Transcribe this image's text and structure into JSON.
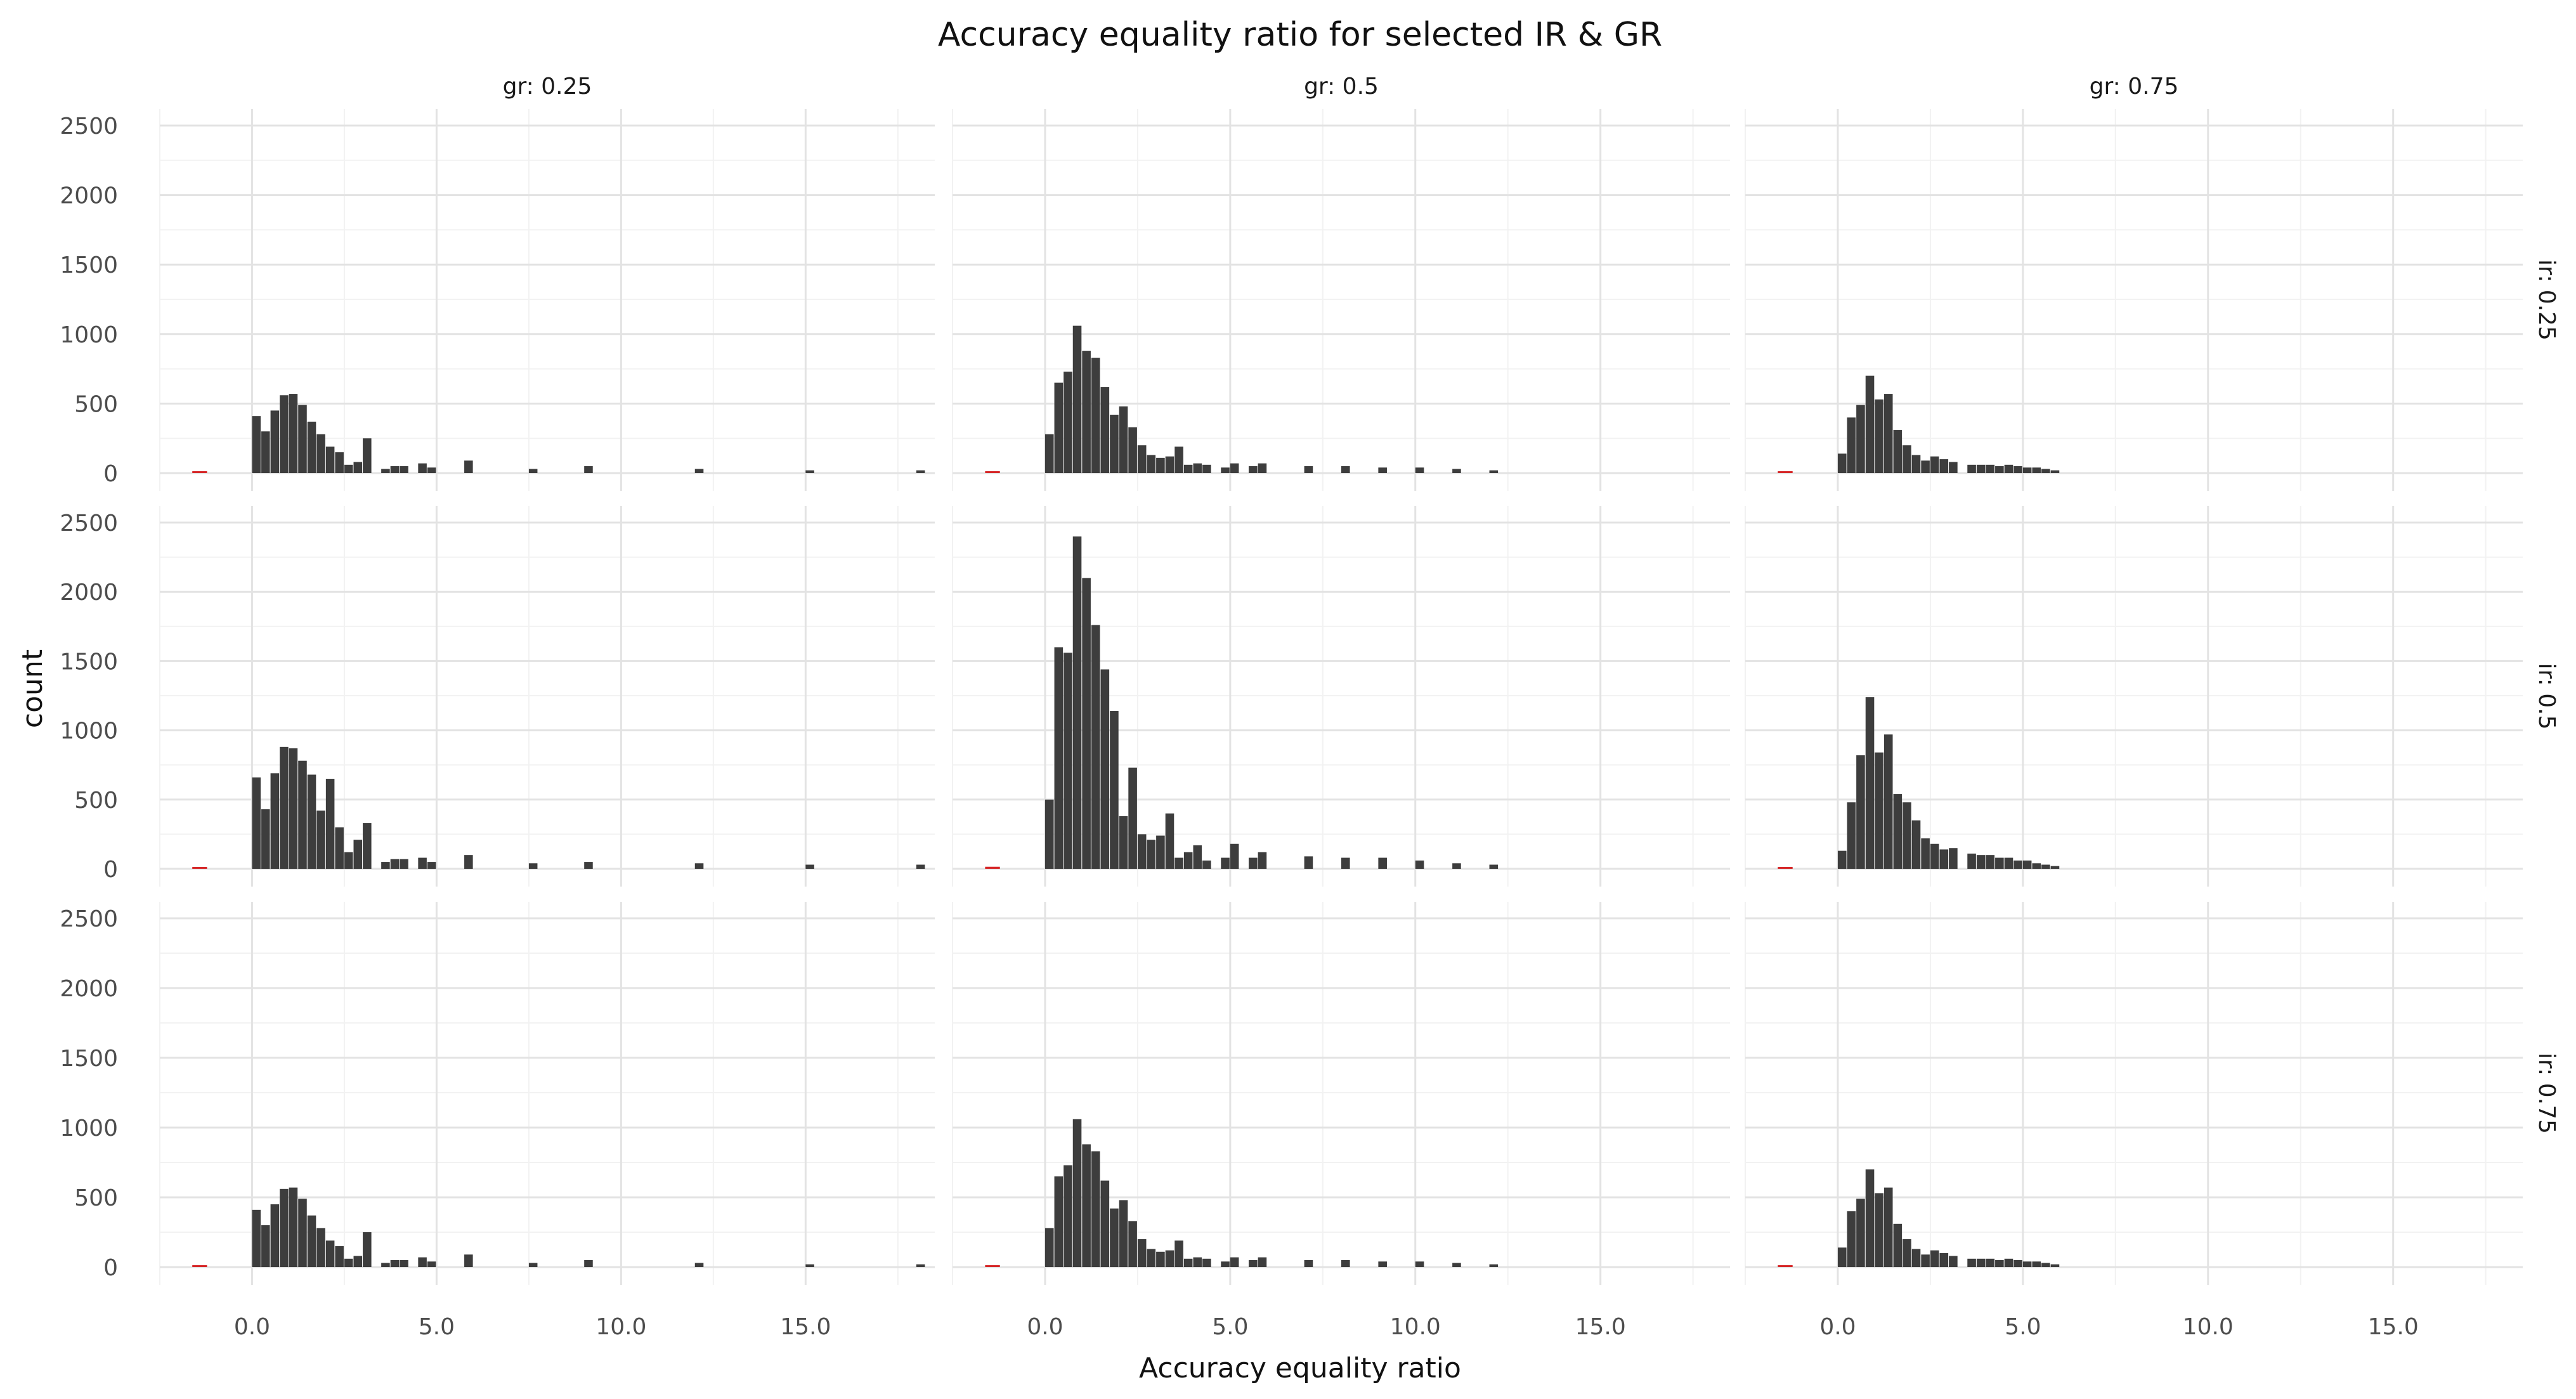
{
  "chart_data": {
    "type": "bar",
    "subtype": "faceted-histogram",
    "title": "Accuracy equality ratio for selected IR & GR",
    "xlabel": "Accuracy equality ratio",
    "ylabel": "count",
    "xlim": [
      -2.5,
      18.5
    ],
    "ylim": [
      0,
      2500
    ],
    "xticks": [
      0,
      5,
      10,
      15
    ],
    "xtick_labels": [
      "0.0",
      "5.0",
      "10.0",
      "15.0"
    ],
    "yticks": [
      0,
      500,
      1000,
      1500,
      2000,
      2500
    ],
    "ytick_labels": [
      "0",
      "500",
      "1000",
      "1500",
      "2000",
      "2500"
    ],
    "grid": true,
    "bar_color": "#3d3d3d",
    "outlier_color": "#d62728",
    "bin_width": 0.25,
    "col_facet_labels": [
      "gr: 0.25",
      "gr: 0.5",
      "gr: 0.75"
    ],
    "row_facet_labels": [
      "ir: 0.25",
      "ir: 0.5",
      "ir: 0.75"
    ],
    "panels": [
      {
        "row": 0,
        "col": 0,
        "outliers": [
          [
            -1.62,
            5
          ]
        ],
        "bins": [
          [
            0.0,
            410
          ],
          [
            0.25,
            300
          ],
          [
            0.5,
            450
          ],
          [
            0.75,
            560
          ],
          [
            1.0,
            570
          ],
          [
            1.25,
            490
          ],
          [
            1.5,
            370
          ],
          [
            1.75,
            280
          ],
          [
            2.0,
            190
          ],
          [
            2.25,
            150
          ],
          [
            2.5,
            60
          ],
          [
            2.75,
            80
          ],
          [
            3.0,
            250
          ],
          [
            3.5,
            30
          ],
          [
            3.75,
            50
          ],
          [
            4.0,
            50
          ],
          [
            4.5,
            70
          ],
          [
            4.75,
            40
          ],
          [
            5.75,
            90
          ],
          [
            7.5,
            30
          ],
          [
            9.0,
            50
          ],
          [
            12.0,
            30
          ],
          [
            15.0,
            20
          ],
          [
            18.0,
            20
          ]
        ]
      },
      {
        "row": 0,
        "col": 1,
        "outliers": [
          [
            -1.62,
            5
          ]
        ],
        "bins": [
          [
            0.0,
            280
          ],
          [
            0.25,
            650
          ],
          [
            0.5,
            730
          ],
          [
            0.75,
            1060
          ],
          [
            1.0,
            880
          ],
          [
            1.25,
            830
          ],
          [
            1.5,
            620
          ],
          [
            1.75,
            420
          ],
          [
            2.0,
            480
          ],
          [
            2.25,
            330
          ],
          [
            2.5,
            200
          ],
          [
            2.75,
            130
          ],
          [
            3.0,
            110
          ],
          [
            3.25,
            120
          ],
          [
            3.5,
            190
          ],
          [
            3.75,
            60
          ],
          [
            4.0,
            70
          ],
          [
            4.25,
            60
          ],
          [
            4.75,
            40
          ],
          [
            5.0,
            70
          ],
          [
            5.5,
            50
          ],
          [
            5.75,
            70
          ],
          [
            7.0,
            50
          ],
          [
            8.0,
            50
          ],
          [
            9.0,
            40
          ],
          [
            10.0,
            40
          ],
          [
            11.0,
            30
          ],
          [
            12.0,
            20
          ]
        ]
      },
      {
        "row": 0,
        "col": 2,
        "outliers": [
          [
            -1.62,
            5
          ]
        ],
        "bins": [
          [
            0.0,
            140
          ],
          [
            0.25,
            400
          ],
          [
            0.5,
            490
          ],
          [
            0.75,
            700
          ],
          [
            1.0,
            530
          ],
          [
            1.25,
            570
          ],
          [
            1.5,
            310
          ],
          [
            1.75,
            200
          ],
          [
            2.0,
            130
          ],
          [
            2.25,
            90
          ],
          [
            2.5,
            120
          ],
          [
            2.75,
            100
          ],
          [
            3.0,
            80
          ],
          [
            3.5,
            60
          ],
          [
            3.75,
            60
          ],
          [
            4.0,
            60
          ],
          [
            4.25,
            50
          ],
          [
            4.5,
            60
          ],
          [
            4.75,
            50
          ],
          [
            5.0,
            40
          ],
          [
            5.25,
            40
          ],
          [
            5.5,
            30
          ],
          [
            5.75,
            20
          ]
        ]
      },
      {
        "row": 1,
        "col": 0,
        "outliers": [
          [
            -1.62,
            8
          ]
        ],
        "bins": [
          [
            0.0,
            660
          ],
          [
            0.25,
            430
          ],
          [
            0.5,
            690
          ],
          [
            0.75,
            880
          ],
          [
            1.0,
            870
          ],
          [
            1.25,
            780
          ],
          [
            1.5,
            680
          ],
          [
            1.75,
            420
          ],
          [
            2.0,
            650
          ],
          [
            2.25,
            300
          ],
          [
            2.5,
            120
          ],
          [
            2.75,
            210
          ],
          [
            3.0,
            330
          ],
          [
            3.5,
            50
          ],
          [
            3.75,
            70
          ],
          [
            4.0,
            70
          ],
          [
            4.5,
            80
          ],
          [
            4.75,
            50
          ],
          [
            5.75,
            100
          ],
          [
            7.5,
            40
          ],
          [
            9.0,
            50
          ],
          [
            12.0,
            40
          ],
          [
            15.0,
            30
          ],
          [
            18.0,
            30
          ]
        ]
      },
      {
        "row": 1,
        "col": 1,
        "outliers": [
          [
            -1.62,
            15
          ]
        ],
        "bins": [
          [
            0.0,
            500
          ],
          [
            0.25,
            1600
          ],
          [
            0.5,
            1560
          ],
          [
            0.75,
            2400
          ],
          [
            1.0,
            2100
          ],
          [
            1.25,
            1760
          ],
          [
            1.5,
            1440
          ],
          [
            1.75,
            1140
          ],
          [
            2.0,
            380
          ],
          [
            2.25,
            730
          ],
          [
            2.5,
            250
          ],
          [
            2.75,
            210
          ],
          [
            3.0,
            240
          ],
          [
            3.25,
            400
          ],
          [
            3.5,
            80
          ],
          [
            3.75,
            120
          ],
          [
            4.0,
            170
          ],
          [
            4.25,
            60
          ],
          [
            4.75,
            80
          ],
          [
            5.0,
            180
          ],
          [
            5.5,
            80
          ],
          [
            5.75,
            120
          ],
          [
            7.0,
            90
          ],
          [
            8.0,
            80
          ],
          [
            9.0,
            80
          ],
          [
            10.0,
            60
          ],
          [
            11.0,
            40
          ],
          [
            12.0,
            30
          ]
        ]
      },
      {
        "row": 1,
        "col": 2,
        "outliers": [
          [
            -1.62,
            5
          ]
        ],
        "bins": [
          [
            0.0,
            130
          ],
          [
            0.25,
            480
          ],
          [
            0.5,
            820
          ],
          [
            0.75,
            1240
          ],
          [
            1.0,
            840
          ],
          [
            1.25,
            970
          ],
          [
            1.5,
            540
          ],
          [
            1.75,
            480
          ],
          [
            2.0,
            350
          ],
          [
            2.25,
            220
          ],
          [
            2.5,
            180
          ],
          [
            2.75,
            140
          ],
          [
            3.0,
            150
          ],
          [
            3.5,
            110
          ],
          [
            3.75,
            100
          ],
          [
            4.0,
            100
          ],
          [
            4.25,
            80
          ],
          [
            4.5,
            80
          ],
          [
            4.75,
            60
          ],
          [
            5.0,
            60
          ],
          [
            5.25,
            40
          ],
          [
            5.5,
            30
          ],
          [
            5.75,
            20
          ]
        ]
      },
      {
        "row": 2,
        "col": 0,
        "outliers": [
          [
            -1.62,
            5
          ]
        ],
        "bins": [
          [
            0.0,
            410
          ],
          [
            0.25,
            300
          ],
          [
            0.5,
            450
          ],
          [
            0.75,
            560
          ],
          [
            1.0,
            570
          ],
          [
            1.25,
            490
          ],
          [
            1.5,
            370
          ],
          [
            1.75,
            280
          ],
          [
            2.0,
            190
          ],
          [
            2.25,
            150
          ],
          [
            2.5,
            60
          ],
          [
            2.75,
            80
          ],
          [
            3.0,
            250
          ],
          [
            3.5,
            30
          ],
          [
            3.75,
            50
          ],
          [
            4.0,
            50
          ],
          [
            4.5,
            70
          ],
          [
            4.75,
            40
          ],
          [
            5.75,
            90
          ],
          [
            7.5,
            30
          ],
          [
            9.0,
            50
          ],
          [
            12.0,
            30
          ],
          [
            15.0,
            20
          ],
          [
            18.0,
            20
          ]
        ]
      },
      {
        "row": 2,
        "col": 1,
        "outliers": [
          [
            -1.62,
            5
          ]
        ],
        "bins": [
          [
            0.0,
            280
          ],
          [
            0.25,
            650
          ],
          [
            0.5,
            730
          ],
          [
            0.75,
            1060
          ],
          [
            1.0,
            880
          ],
          [
            1.25,
            830
          ],
          [
            1.5,
            620
          ],
          [
            1.75,
            420
          ],
          [
            2.0,
            480
          ],
          [
            2.25,
            330
          ],
          [
            2.5,
            200
          ],
          [
            2.75,
            130
          ],
          [
            3.0,
            110
          ],
          [
            3.25,
            120
          ],
          [
            3.5,
            190
          ],
          [
            3.75,
            60
          ],
          [
            4.0,
            70
          ],
          [
            4.25,
            60
          ],
          [
            4.75,
            40
          ],
          [
            5.0,
            70
          ],
          [
            5.5,
            50
          ],
          [
            5.75,
            70
          ],
          [
            7.0,
            50
          ],
          [
            8.0,
            50
          ],
          [
            9.0,
            40
          ],
          [
            10.0,
            40
          ],
          [
            11.0,
            30
          ],
          [
            12.0,
            20
          ]
        ]
      },
      {
        "row": 2,
        "col": 2,
        "outliers": [
          [
            -1.62,
            5
          ]
        ],
        "bins": [
          [
            0.0,
            140
          ],
          [
            0.25,
            400
          ],
          [
            0.5,
            490
          ],
          [
            0.75,
            700
          ],
          [
            1.0,
            530
          ],
          [
            1.25,
            570
          ],
          [
            1.5,
            310
          ],
          [
            1.75,
            200
          ],
          [
            2.0,
            130
          ],
          [
            2.25,
            90
          ],
          [
            2.5,
            120
          ],
          [
            2.75,
            100
          ],
          [
            3.0,
            80
          ],
          [
            3.5,
            60
          ],
          [
            3.75,
            60
          ],
          [
            4.0,
            60
          ],
          [
            4.25,
            50
          ],
          [
            4.5,
            60
          ],
          [
            4.75,
            50
          ],
          [
            5.0,
            40
          ],
          [
            5.25,
            40
          ],
          [
            5.5,
            30
          ],
          [
            5.75,
            20
          ]
        ]
      }
    ]
  }
}
